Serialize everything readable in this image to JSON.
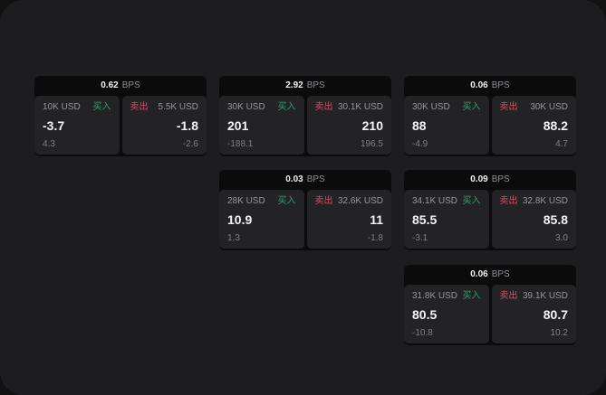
{
  "shared": {
    "bps_suffix": "BPS",
    "buy_label": "买入",
    "sell_label": "卖出"
  },
  "colors": {
    "buy": "#2fa06a",
    "sell": "#cf5066",
    "surface_bg": "#1d1d1f",
    "card_bg": "#0b0b0c",
    "panel_bg": "#232326"
  },
  "cards": [
    {
      "bps": "0.62",
      "grid": {
        "row": 1,
        "col": 1
      },
      "buy": {
        "size": "10K USD",
        "value": "-3.7",
        "delta": "4.3"
      },
      "sell": {
        "size": "5.5K USD",
        "value": "-1.8",
        "delta": "-2.6"
      }
    },
    {
      "bps": "2.92",
      "grid": {
        "row": 1,
        "col": 2
      },
      "buy": {
        "size": "30K USD",
        "value": "201",
        "delta": "-188.1"
      },
      "sell": {
        "size": "30.1K USD",
        "value": "210",
        "delta": "196.5"
      }
    },
    {
      "bps": "0.06",
      "grid": {
        "row": 1,
        "col": 3
      },
      "buy": {
        "size": "30K USD",
        "value": "88",
        "delta": "-4.9"
      },
      "sell": {
        "size": "30K USD",
        "value": "88.2",
        "delta": "4.7"
      }
    },
    {
      "bps": "0.03",
      "grid": {
        "row": 2,
        "col": 2
      },
      "buy": {
        "size": "28K USD",
        "value": "10.9",
        "delta": "1.3"
      },
      "sell": {
        "size": "32.6K USD",
        "value": "11",
        "delta": "-1.8"
      }
    },
    {
      "bps": "0.09",
      "grid": {
        "row": 2,
        "col": 3
      },
      "buy": {
        "size": "34.1K USD",
        "value": "85.5",
        "delta": "-3.1"
      },
      "sell": {
        "size": "32.8K USD",
        "value": "85.8",
        "delta": "3.0"
      }
    },
    {
      "bps": "0.06",
      "grid": {
        "row": 3,
        "col": 3
      },
      "buy": {
        "size": "31.8K USD",
        "value": "80.5",
        "delta": "-10.8"
      },
      "sell": {
        "size": "39.1K USD",
        "value": "80.7",
        "delta": "10.2"
      }
    }
  ]
}
